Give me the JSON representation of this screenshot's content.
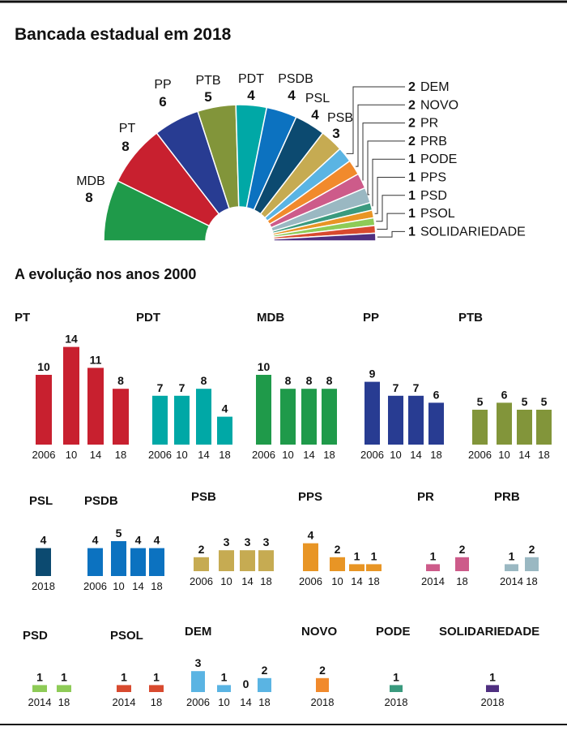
{
  "title": "Bancada estadual em 2018",
  "subtitle": "A evolução nos anos 2000",
  "chart_data": [
    {
      "type": "pie",
      "subtype": "semicircle",
      "title": "Bancada estadual em 2018",
      "slices": [
        {
          "party": "MDB",
          "seats": 8,
          "color": "#1f9a4a"
        },
        {
          "party": "PT",
          "seats": 8,
          "color": "#c8202f"
        },
        {
          "party": "PP",
          "seats": 6,
          "color": "#283c92"
        },
        {
          "party": "PTB",
          "seats": 5,
          "color": "#82953a"
        },
        {
          "party": "PDT",
          "seats": 4,
          "color": "#00a8a6"
        },
        {
          "party": "PSDB",
          "seats": 4,
          "color": "#0c72c0"
        },
        {
          "party": "PSL",
          "seats": 4,
          "color": "#0c4a70"
        },
        {
          "party": "PSB",
          "seats": 3,
          "color": "#c6ab52"
        },
        {
          "party": "DEM",
          "seats": 2,
          "color": "#5ab4e3"
        },
        {
          "party": "NOVO",
          "seats": 2,
          "color": "#f18a2c"
        },
        {
          "party": "PR",
          "seats": 2,
          "color": "#cd5b8a"
        },
        {
          "party": "PRB",
          "seats": 2,
          "color": "#9ab8c2"
        },
        {
          "party": "PODE",
          "seats": 1,
          "color": "#3a9a7e"
        },
        {
          "party": "PPS",
          "seats": 1,
          "color": "#e89525"
        },
        {
          "party": "PSD",
          "seats": 1,
          "color": "#8ecb57"
        },
        {
          "party": "PSOL",
          "seats": 1,
          "color": "#d84a2f"
        },
        {
          "party": "SOLIDARIEDADE",
          "seats": 1,
          "color": "#4f2f80"
        }
      ]
    },
    {
      "type": "bar",
      "title": "A evolução nos anos 2000",
      "panels": [
        {
          "party": "PT",
          "color": "#c8202f",
          "categories": [
            "2006",
            "10",
            "14",
            "18"
          ],
          "values": [
            10,
            14,
            11,
            8
          ]
        },
        {
          "party": "PDT",
          "color": "#00a8a6",
          "categories": [
            "2006",
            "10",
            "14",
            "18"
          ],
          "values": [
            7,
            7,
            8,
            4
          ]
        },
        {
          "party": "MDB",
          "color": "#1f9a4a",
          "categories": [
            "2006",
            "10",
            "14",
            "18"
          ],
          "values": [
            10,
            8,
            8,
            8
          ]
        },
        {
          "party": "PP",
          "color": "#283c92",
          "categories": [
            "2006",
            "10",
            "14",
            "18"
          ],
          "values": [
            9,
            7,
            7,
            6
          ]
        },
        {
          "party": "PTB",
          "color": "#82953a",
          "categories": [
            "2006",
            "10",
            "14",
            "18"
          ],
          "values": [
            5,
            6,
            5,
            5
          ]
        },
        {
          "party": "PSL",
          "color": "#0c4a70",
          "categories": [
            "2018"
          ],
          "values": [
            4
          ]
        },
        {
          "party": "PSDB",
          "color": "#0c72c0",
          "categories": [
            "2006",
            "10",
            "14",
            "18"
          ],
          "values": [
            4,
            5,
            4,
            4
          ]
        },
        {
          "party": "PSB",
          "color": "#c6ab52",
          "categories": [
            "2006",
            "10",
            "14",
            "18"
          ],
          "values": [
            2,
            3,
            3,
            3
          ]
        },
        {
          "party": "PPS",
          "color": "#e89525",
          "categories": [
            "2006",
            "10",
            "14",
            "18"
          ],
          "values": [
            4,
            2,
            1,
            1
          ]
        },
        {
          "party": "PR",
          "color": "#cd5b8a",
          "categories": [
            "2014",
            "18"
          ],
          "values": [
            1,
            2
          ]
        },
        {
          "party": "PRB",
          "color": "#9ab8c2",
          "categories": [
            "2014",
            "18"
          ],
          "values": [
            1,
            2
          ]
        },
        {
          "party": "PSD",
          "color": "#8ecb57",
          "categories": [
            "2014",
            "18"
          ],
          "values": [
            1,
            1
          ]
        },
        {
          "party": "PSOL",
          "color": "#d84a2f",
          "categories": [
            "2014",
            "18"
          ],
          "values": [
            1,
            1
          ]
        },
        {
          "party": "DEM",
          "color": "#5ab4e3",
          "categories": [
            "2006",
            "10",
            "14",
            "18"
          ],
          "values": [
            3,
            1,
            0,
            2
          ]
        },
        {
          "party": "NOVO",
          "color": "#f18a2c",
          "categories": [
            "2018"
          ],
          "values": [
            2
          ]
        },
        {
          "party": "PODE",
          "color": "#3a9a7e",
          "categories": [
            "2018"
          ],
          "values": [
            1
          ]
        },
        {
          "party": "SOLIDARIEDADE",
          "color": "#4f2f80",
          "categories": [
            "2018"
          ],
          "values": [
            1
          ]
        }
      ]
    }
  ]
}
